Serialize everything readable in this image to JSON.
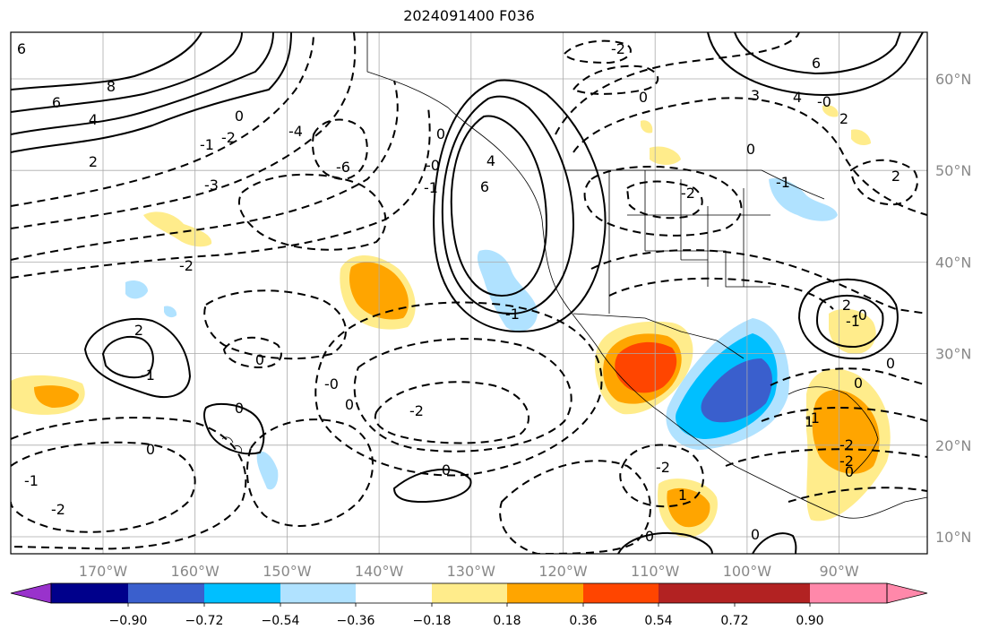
{
  "title": "2024091400 F036",
  "map": {
    "type": "contour-map",
    "projection": "lat-lon",
    "lon_range": [
      -180,
      -80
    ],
    "lat_range": [
      8,
      65
    ],
    "grid": true,
    "lon_ticks": [
      "170°W",
      "160°W",
      "150°W",
      "140°W",
      "130°W",
      "120°W",
      "110°W",
      "100°W",
      "90°W"
    ],
    "lat_ticks": [
      "60°N",
      "50°N",
      "40°N",
      "30°N",
      "20°N",
      "10°N"
    ],
    "contour_labels": [
      {
        "text": "6"
      },
      {
        "text": "8"
      },
      {
        "text": "6"
      },
      {
        "text": "4"
      },
      {
        "text": "2"
      },
      {
        "text": "0"
      },
      {
        "text": "-1"
      },
      {
        "text": "-2"
      },
      {
        "text": "-3"
      },
      {
        "text": "-4"
      },
      {
        "text": "-6"
      },
      {
        "text": "-2"
      },
      {
        "text": "0"
      },
      {
        "text": "-2"
      },
      {
        "text": "2"
      },
      {
        "text": "-1"
      },
      {
        "text": "0"
      },
      {
        "text": "0"
      },
      {
        "text": "-2"
      },
      {
        "text": "-1"
      },
      {
        "text": "-0"
      },
      {
        "text": "0"
      },
      {
        "text": "-1"
      },
      {
        "text": "-2"
      },
      {
        "text": "0"
      },
      {
        "text": "-1"
      },
      {
        "text": "-0"
      },
      {
        "text": "0"
      },
      {
        "text": "6"
      },
      {
        "text": "4"
      },
      {
        "text": "-1"
      },
      {
        "text": "-0"
      },
      {
        "text": "2"
      },
      {
        "text": "-2"
      },
      {
        "text": "6"
      },
      {
        "text": "4"
      },
      {
        "text": "3"
      },
      {
        "text": "0"
      },
      {
        "text": "2"
      },
      {
        "text": "0"
      },
      {
        "text": "-1"
      },
      {
        "text": "-2"
      },
      {
        "text": "0"
      },
      {
        "text": "-2"
      },
      {
        "text": "1"
      },
      {
        "text": "-0"
      },
      {
        "text": "0"
      },
      {
        "text": "2"
      },
      {
        "text": "0"
      },
      {
        "text": "0"
      },
      {
        "text": "1"
      },
      {
        "text": "-2"
      },
      {
        "text": "-1"
      },
      {
        "text": "0"
      }
    ]
  },
  "colorbar": {
    "extend": "both",
    "ticks": [
      "−0.90",
      "−0.72",
      "−0.54",
      "−0.36",
      "−0.18",
      "0.18",
      "0.36",
      "0.54",
      "0.72",
      "0.90"
    ],
    "colors": [
      "#9932cc",
      "#00008b",
      "#3a5fcd",
      "#00bfff",
      "#b0e2ff",
      "#ffffff",
      "#ffec8b",
      "#ffa500",
      "#ff4500",
      "#b22222",
      "#ff88aa"
    ]
  }
}
